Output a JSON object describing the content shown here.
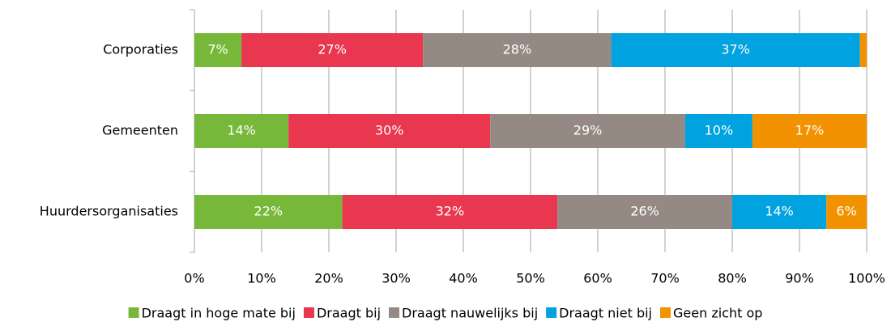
{
  "chart_data": {
    "type": "stacked-barh",
    "categories": [
      "Corporaties",
      "Gemeenten",
      "Huurdersorganisaties"
    ],
    "series": [
      {
        "name": "Draagt in hoge mate bij",
        "color": "#77b83a",
        "values": [
          7,
          14,
          22
        ],
        "value_labels": [
          "7%",
          "14%",
          "22%"
        ]
      },
      {
        "name": "Draagt bij",
        "color": "#e8374f",
        "values": [
          27,
          30,
          32
        ],
        "value_labels": [
          "27%",
          "30%",
          "32%"
        ]
      },
      {
        "name": "Draagt nauwelijks bij",
        "color": "#948a83",
        "values": [
          28,
          29,
          26
        ],
        "value_labels": [
          "28%",
          "29%",
          "26%"
        ]
      },
      {
        "name": "Draagt niet bij",
        "color": "#00a2e0",
        "values": [
          37,
          10,
          14
        ],
        "value_labels": [
          "37%",
          "10%",
          "14%"
        ]
      },
      {
        "name": "Geen zicht op",
        "color": "#f39200",
        "values": [
          1,
          17,
          6
        ],
        "value_labels": [
          null,
          "17%",
          "6%"
        ]
      }
    ],
    "xlim": [
      0,
      100
    ],
    "xticks": [
      {
        "value": 0,
        "label": "0%"
      },
      {
        "value": 10,
        "label": "10%"
      },
      {
        "value": 20,
        "label": "20%"
      },
      {
        "value": 30,
        "label": "30%"
      },
      {
        "value": 40,
        "label": "40%"
      },
      {
        "value": 50,
        "label": "50%"
      },
      {
        "value": 60,
        "label": "60%"
      },
      {
        "value": 70,
        "label": "70%"
      },
      {
        "value": 80,
        "label": "80%"
      },
      {
        "value": 90,
        "label": "90%"
      },
      {
        "value": 100,
        "label": "100%"
      }
    ],
    "grid": true,
    "legend": "bottom"
  }
}
